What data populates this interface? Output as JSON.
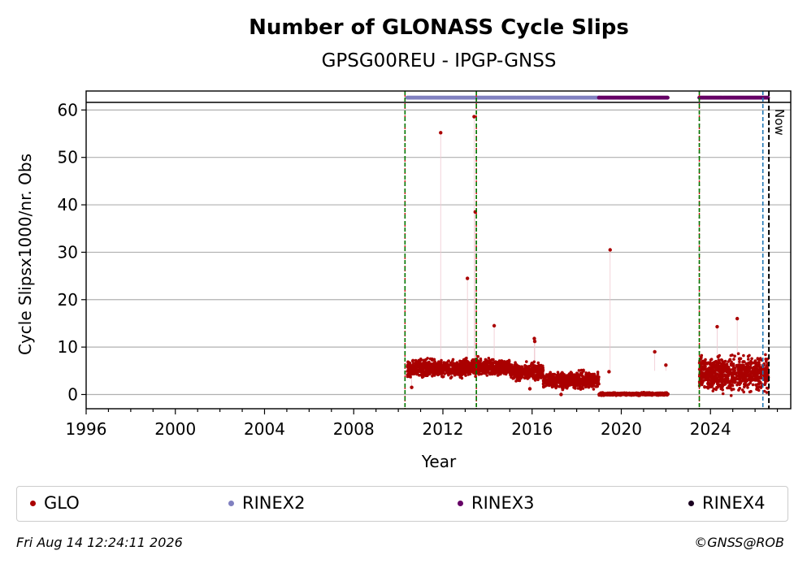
{
  "chart_data": {
    "type": "scatter",
    "title": "Number of GLONASS Cycle Slips",
    "subtitle": "GPSG00REU - IPGP-GNSS",
    "xlabel": "Year",
    "ylabel": "Cycle Slipsx1000/nr. Obs",
    "xlim": [
      1996,
      2027.6
    ],
    "ylim": [
      -3,
      64
    ],
    "x_ticks": [
      1996,
      2000,
      2004,
      2008,
      2012,
      2016,
      2020,
      2024
    ],
    "y_ticks": [
      0,
      10,
      20,
      30,
      40,
      50,
      60
    ],
    "grid": "horizontal",
    "legend_position": "bottom",
    "now_label": "Now",
    "colors": {
      "glo": "#aa0000",
      "rinex2": "#8080c0",
      "rinex3": "#660066",
      "rinex4": "#1a0020",
      "event_green": "#007700",
      "event_blue": "#1f77b4",
      "now_line": "#000000",
      "grid": "#b0b0b0"
    },
    "event_lines_green": [
      2010.3,
      2013.5,
      2023.5
    ],
    "event_lines_blue": [
      2026.35
    ],
    "now_year": 2026.62,
    "series": [
      {
        "name": "GLO",
        "segments": [
          {
            "x_start": 2010.4,
            "x_end": 2013.0,
            "mean": 5.5,
            "spread": 1.6
          },
          {
            "x_start": 2013.0,
            "x_end": 2015.0,
            "mean": 5.8,
            "spread": 1.5
          },
          {
            "x_start": 2015.0,
            "x_end": 2016.5,
            "mean": 4.8,
            "spread": 1.5
          },
          {
            "x_start": 2016.5,
            "x_end": 2019.0,
            "mean": 3.0,
            "spread": 1.5
          },
          {
            "x_start": 2019.0,
            "x_end": 2022.1,
            "mean": 0.1,
            "spread": 0.25
          },
          {
            "x_start": 2023.5,
            "x_end": 2026.6,
            "mean": 4.5,
            "spread": 3.5
          }
        ],
        "outliers": [
          {
            "x": 2011.9,
            "y": 55.2
          },
          {
            "x": 2013.4,
            "y": 58.6
          },
          {
            "x": 2013.45,
            "y": 38.5
          },
          {
            "x": 2013.1,
            "y": 24.5
          },
          {
            "x": 2019.5,
            "y": 30.5
          },
          {
            "x": 2014.3,
            "y": 14.5
          },
          {
            "x": 2016.1,
            "y": 11.8
          },
          {
            "x": 2016.12,
            "y": 11.2
          },
          {
            "x": 2021.5,
            "y": 9.0
          },
          {
            "x": 2019.45,
            "y": 4.8
          },
          {
            "x": 2022.0,
            "y": 6.2
          },
          {
            "x": 2025.2,
            "y": 16.0
          },
          {
            "x": 2024.3,
            "y": 14.3
          },
          {
            "x": 2010.6,
            "y": 1.5
          },
          {
            "x": 2015.9,
            "y": 1.2
          },
          {
            "x": 2017.3,
            "y": 0.0
          }
        ]
      },
      {
        "name": "RINEX2",
        "ranges": [
          [
            2010.4,
            2019.0
          ]
        ]
      },
      {
        "name": "RINEX3",
        "ranges": [
          [
            2019.0,
            2022.1
          ],
          [
            2023.5,
            2026.6
          ]
        ]
      },
      {
        "name": "RINEX4",
        "ranges": []
      }
    ],
    "rinex_marker_y": 62.6
  },
  "legend": {
    "glo": "GLO",
    "rinex2": "RINEX2",
    "rinex3": "RINEX3",
    "rinex4": "RINEX4"
  },
  "footer": {
    "timestamp": "Fri Aug 14 12:24:11 2026",
    "credit": "©GNSS@ROB"
  }
}
